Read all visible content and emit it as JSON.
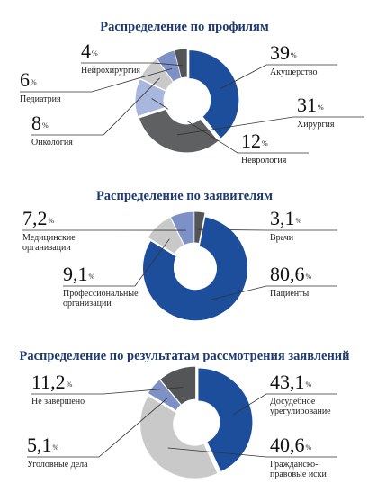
{
  "chart_data": [
    {
      "type": "donut",
      "title": "Распределение по профилям",
      "unit": "%",
      "categories": [
        "Акушерство",
        "Хирургия",
        "Неврология",
        "Онкология",
        "Педиатрия",
        "Нейрохирургия"
      ],
      "values": [
        39,
        31,
        12,
        8,
        6,
        4
      ],
      "colors": [
        "#1d4e9b",
        "#5f6062",
        "#a8b7de",
        "#c9c9c9",
        "#7d91c7",
        "#545557"
      ]
    },
    {
      "type": "donut",
      "title": "Распределение по заявителям",
      "unit": "%",
      "categories": [
        "Врачи",
        "Пациенты",
        "Профессиональные\nорганизации",
        "Медицинские\nорганизации"
      ],
      "values": [
        3.1,
        80.6,
        9.1,
        7.2
      ],
      "value_labels": [
        "3,1",
        "80,6",
        "9,1",
        "7,2"
      ],
      "colors": [
        "#545557",
        "#1d4e9b",
        "#c9c9c9",
        "#7d91c7"
      ]
    },
    {
      "type": "donut",
      "title": "Распределение по результатам рассмотрения заявлений",
      "unit": "%",
      "categories": [
        "Досудебное\nурегулирование",
        "Гражданско-\nправовые иски",
        "Уголовные дела",
        "Не завершено"
      ],
      "values": [
        43.1,
        40.6,
        5.1,
        11.2
      ],
      "value_labels": [
        "43,1",
        "40,6",
        "5,1",
        "11,2"
      ],
      "colors": [
        "#1d4e9b",
        "#c9c9c9",
        "#7d91c7",
        "#545557"
      ]
    }
  ]
}
